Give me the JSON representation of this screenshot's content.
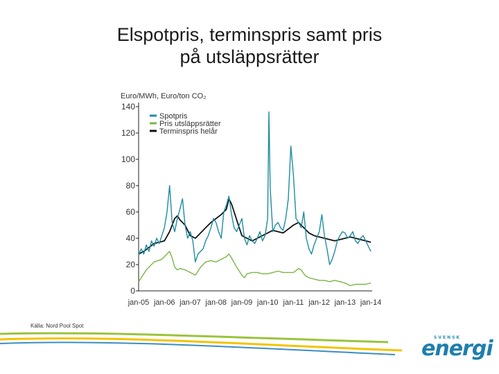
{
  "slide": {
    "title_line1": "Elspotpris, terminspris samt pris",
    "title_line2": "på utsläppsrätter",
    "source": "Källa: Nord Pool Spot"
  },
  "logo": {
    "top": "SVENSK",
    "main": "energi"
  },
  "colors": {
    "spot": "#1d8ca0",
    "emission": "#7bb545",
    "forward": "#111111",
    "axis": "#222222",
    "tick": "#333333",
    "swoosh_green": "#9ac33c",
    "swoosh_yellow": "#f2c400",
    "swoosh_blue": "#3a8fc0"
  },
  "chart_data": {
    "type": "line",
    "title": "",
    "ylabel": "Euro/MWh, Euro/ton CO₂",
    "xlabel": "",
    "ylim": [
      0,
      140
    ],
    "yticks": [
      "0",
      "20",
      "40",
      "60",
      "80",
      "100",
      "120",
      "140"
    ],
    "xlim": [
      2005.0,
      2014.05
    ],
    "xticks": [
      {
        "label": "jan-05",
        "x": 2005.0
      },
      {
        "label": "jan-06",
        "x": 2006.0
      },
      {
        "label": "jan-07",
        "x": 2007.0
      },
      {
        "label": "jan-08",
        "x": 2008.0
      },
      {
        "label": "jan-09",
        "x": 2009.0
      },
      {
        "label": "jan-10",
        "x": 2010.0
      },
      {
        "label": "jan-11",
        "x": 2011.0
      },
      {
        "label": "jan-12",
        "x": 2012.0
      },
      {
        "label": "jan-13",
        "x": 2013.0
      },
      {
        "label": "jan-14",
        "x": 2014.0
      }
    ],
    "legend_position": "top-left",
    "grid": false,
    "series": [
      {
        "name": "Spotpris",
        "key": "spot",
        "x": [
          2005.0,
          2005.1,
          2005.2,
          2005.3,
          2005.4,
          2005.5,
          2005.6,
          2005.7,
          2005.8,
          2005.9,
          2006.0,
          2006.1,
          2006.2,
          2006.3,
          2006.4,
          2006.5,
          2006.6,
          2006.7,
          2006.8,
          2006.9,
          2007.0,
          2007.1,
          2007.2,
          2007.3,
          2007.4,
          2007.5,
          2007.6,
          2007.7,
          2007.8,
          2007.9,
          2008.0,
          2008.1,
          2008.2,
          2008.3,
          2008.4,
          2008.5,
          2008.6,
          2008.7,
          2008.8,
          2008.9,
          2009.0,
          2009.1,
          2009.2,
          2009.3,
          2009.4,
          2009.5,
          2009.6,
          2009.7,
          2009.8,
          2009.9,
          2010.0,
          2010.05,
          2010.1,
          2010.2,
          2010.3,
          2010.4,
          2010.5,
          2010.6,
          2010.7,
          2010.8,
          2010.9,
          2011.0,
          2011.1,
          2011.2,
          2011.3,
          2011.4,
          2011.5,
          2011.6,
          2011.7,
          2011.8,
          2011.9,
          2012.0,
          2012.1,
          2012.2,
          2012.3,
          2012.4,
          2012.5,
          2012.6,
          2012.7,
          2012.8,
          2012.9,
          2013.0,
          2013.1,
          2013.2,
          2013.3,
          2013.4,
          2013.5,
          2013.6,
          2013.7,
          2013.8,
          2013.9,
          2014.0
        ],
        "values": [
          27,
          32,
          28,
          35,
          30,
          38,
          34,
          40,
          36,
          42,
          48,
          60,
          80,
          52,
          45,
          55,
          62,
          70,
          50,
          40,
          45,
          38,
          22,
          28,
          30,
          32,
          38,
          42,
          48,
          55,
          52,
          45,
          40,
          60,
          65,
          72,
          58,
          48,
          45,
          50,
          55,
          40,
          35,
          42,
          38,
          36,
          40,
          45,
          38,
          42,
          55,
          136,
          78,
          45,
          50,
          52,
          48,
          46,
          55,
          70,
          110,
          88,
          55,
          52,
          48,
          60,
          40,
          32,
          28,
          35,
          40,
          45,
          58,
          42,
          32,
          20,
          24,
          30,
          38,
          42,
          45,
          44,
          40,
          42,
          45,
          38,
          36,
          40,
          42,
          38,
          34,
          30
        ]
      },
      {
        "name": "Pris utsläppsrätter",
        "key": "emission",
        "x": [
          2005.0,
          2005.3,
          2005.6,
          2005.9,
          2006.0,
          2006.1,
          2006.2,
          2006.3,
          2006.4,
          2006.5,
          2006.6,
          2006.8,
          2007.0,
          2007.2,
          2007.4,
          2007.6,
          2007.8,
          2008.0,
          2008.2,
          2008.4,
          2008.5,
          2008.6,
          2008.8,
          2009.0,
          2009.1,
          2009.2,
          2009.4,
          2009.6,
          2009.8,
          2010.0,
          2010.2,
          2010.4,
          2010.6,
          2010.8,
          2011.0,
          2011.2,
          2011.3,
          2011.4,
          2011.5,
          2011.6,
          2011.8,
          2012.0,
          2012.2,
          2012.4,
          2012.6,
          2012.8,
          2013.0,
          2013.2,
          2013.4,
          2013.6,
          2013.8,
          2014.0
        ],
        "values": [
          7,
          16,
          22,
          24,
          26,
          28,
          30,
          25,
          18,
          16,
          17,
          16,
          14,
          12,
          18,
          22,
          23,
          22,
          24,
          26,
          28,
          25,
          18,
          12,
          10,
          13,
          14,
          14,
          13,
          13,
          14,
          15,
          14,
          14,
          14,
          17,
          16,
          13,
          11,
          10,
          9,
          8,
          8,
          7,
          8,
          7,
          6,
          4,
          5,
          5,
          5,
          6
        ]
      },
      {
        "name": "Terminspris helår",
        "key": "forward",
        "x": [
          2005.0,
          2005.2,
          2005.4,
          2005.6,
          2005.8,
          2006.0,
          2006.2,
          2006.4,
          2006.5,
          2006.6,
          2006.8,
          2007.0,
          2007.2,
          2007.4,
          2007.6,
          2007.8,
          2008.0,
          2008.2,
          2008.4,
          2008.5,
          2008.6,
          2008.7,
          2008.9,
          2009.0,
          2009.2,
          2009.4,
          2009.6,
          2009.8,
          2010.0,
          2010.2,
          2010.4,
          2010.6,
          2010.8,
          2011.0,
          2011.2,
          2011.4,
          2011.6,
          2011.8,
          2012.0,
          2012.2,
          2012.4,
          2012.6,
          2012.8,
          2013.0,
          2013.2,
          2013.4,
          2013.6,
          2013.8,
          2014.0
        ],
        "values": [
          28,
          30,
          33,
          36,
          37,
          38,
          45,
          55,
          57,
          54,
          50,
          42,
          40,
          44,
          48,
          52,
          55,
          58,
          62,
          70,
          66,
          60,
          48,
          42,
          40,
          38,
          40,
          42,
          44,
          46,
          45,
          44,
          47,
          50,
          52,
          48,
          44,
          42,
          41,
          40,
          39,
          38,
          39,
          40,
          41,
          40,
          39,
          38,
          37
        ]
      }
    ]
  }
}
